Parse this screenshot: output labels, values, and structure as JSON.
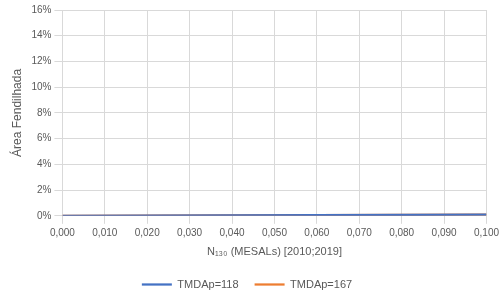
{
  "chart_data": {
    "type": "line",
    "x_label": "N₁₃₀ (MESALs) [2010;2019]",
    "y_label": "Área Fendilhada",
    "x": [
      0,
      0.02,
      0.04,
      0.06,
      0.08,
      0.1
    ],
    "series": [
      {
        "name": "TMDAp=118",
        "color": "#4472c4",
        "values": [
          0,
          0.015,
          0.035,
          0.05,
          0.07,
          0.09
        ]
      },
      {
        "name": "TMDAp=167",
        "color": "#ed7d31",
        "values": [
          0,
          0.02,
          0.04,
          0.06,
          0.08,
          0.1
        ]
      }
    ],
    "xlim": [
      0,
      0.1
    ],
    "xticks": [
      {
        "value": 0,
        "label": "0,000"
      },
      {
        "value": 0.01,
        "label": "0,010"
      },
      {
        "value": 0.02,
        "label": "0,020"
      },
      {
        "value": 0.03,
        "label": "0,030"
      },
      {
        "value": 0.04,
        "label": "0,040"
      },
      {
        "value": 0.05,
        "label": "0,050"
      },
      {
        "value": 0.06,
        "label": "0,060"
      },
      {
        "value": 0.07,
        "label": "0,070"
      },
      {
        "value": 0.08,
        "label": "0,080"
      },
      {
        "value": 0.09,
        "label": "0,090"
      },
      {
        "value": 0.1,
        "label": "0,100"
      }
    ],
    "ylim": [
      0,
      16
    ],
    "yticks": [
      {
        "value": 0,
        "label": "0%"
      },
      {
        "value": 2,
        "label": "2%"
      },
      {
        "value": 4,
        "label": "4%"
      },
      {
        "value": 6,
        "label": "6%"
      },
      {
        "value": 8,
        "label": "8%"
      },
      {
        "value": 10,
        "label": "10%"
      },
      {
        "value": 12,
        "label": "12%"
      },
      {
        "value": 14,
        "label": "14%"
      },
      {
        "value": 16,
        "label": "16%"
      }
    ],
    "grid": true,
    "legend": "bottom"
  }
}
